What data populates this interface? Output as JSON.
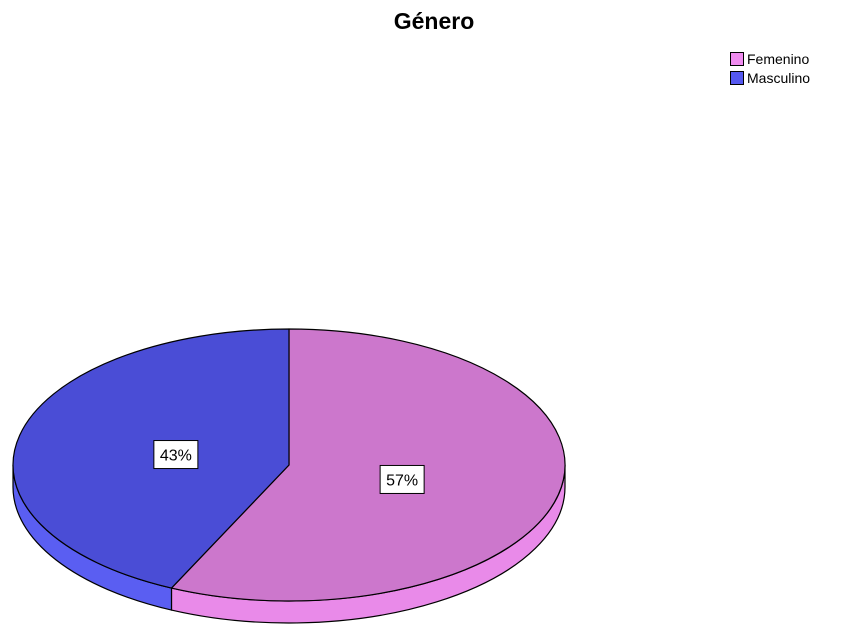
{
  "chart_data": {
    "type": "pie",
    "title": "Género",
    "categories": [
      "Femenino",
      "Masculino"
    ],
    "values": [
      57,
      43
    ],
    "value_labels": [
      "57%",
      "43%"
    ],
    "colors": [
      "#cc77cc",
      "#4a4dd6"
    ],
    "side_colors": [
      "#e98ae9",
      "#5a5ef2"
    ],
    "legend_colors": [
      "#f08cf0",
      "#5558f0"
    ],
    "legend_position": "top-right",
    "style": "3d"
  }
}
